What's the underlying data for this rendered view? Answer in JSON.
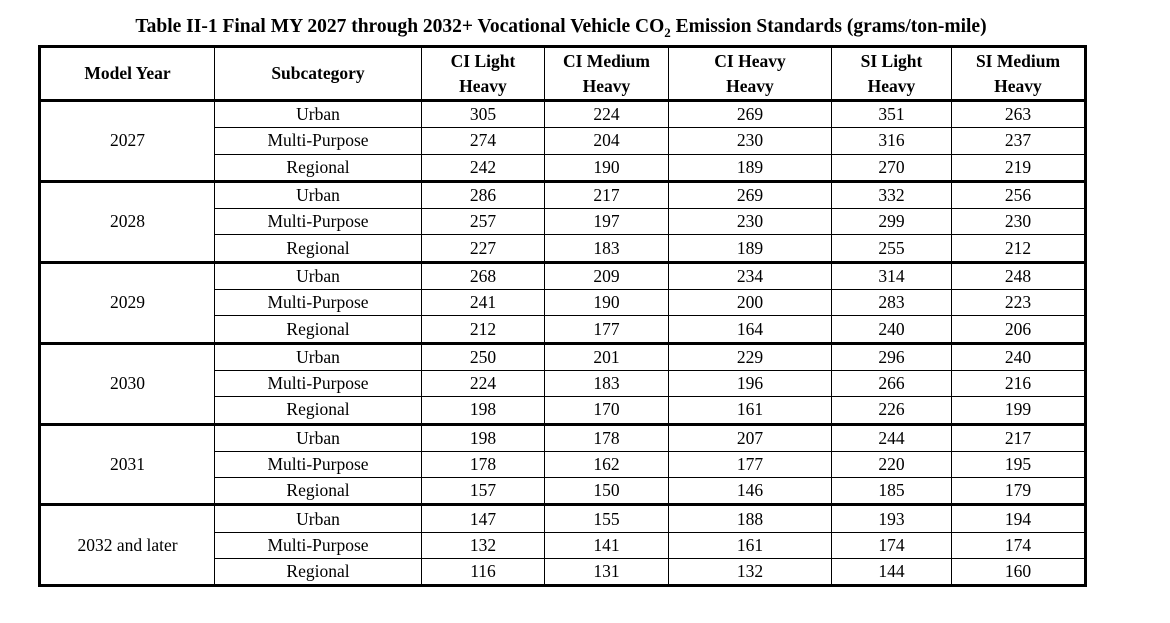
{
  "title": {
    "prefix": "Table II-1 Final MY 2027 through 2032+ Vocational Vehicle CO",
    "subscript": "2",
    "suffix": " Emission Standards (grams/ton-mile)"
  },
  "table": {
    "headers": [
      {
        "id": "model-year",
        "lines": [
          "Model Year"
        ]
      },
      {
        "id": "subcategory",
        "lines": [
          "Subcategory"
        ]
      },
      {
        "id": "ci-light-heavy",
        "lines": [
          "CI Light",
          "Heavy"
        ]
      },
      {
        "id": "ci-medium-heavy",
        "lines": [
          "CI Medium",
          "Heavy"
        ]
      },
      {
        "id": "ci-heavy-heavy",
        "lines": [
          "CI Heavy",
          "Heavy"
        ]
      },
      {
        "id": "si-light-heavy",
        "lines": [
          "SI Light",
          "Heavy"
        ]
      },
      {
        "id": "si-medium-heavy",
        "lines": [
          "SI Medium",
          "Heavy"
        ]
      }
    ],
    "groups": [
      {
        "model_year": "2027",
        "rows": [
          {
            "subcategory": "Urban",
            "values": [
              "305",
              "224",
              "269",
              "351",
              "263"
            ]
          },
          {
            "subcategory": "Multi-Purpose",
            "values": [
              "274",
              "204",
              "230",
              "316",
              "237"
            ]
          },
          {
            "subcategory": "Regional",
            "values": [
              "242",
              "190",
              "189",
              "270",
              "219"
            ]
          }
        ]
      },
      {
        "model_year": "2028",
        "rows": [
          {
            "subcategory": "Urban",
            "values": [
              "286",
              "217",
              "269",
              "332",
              "256"
            ]
          },
          {
            "subcategory": "Multi-Purpose",
            "values": [
              "257",
              "197",
              "230",
              "299",
              "230"
            ]
          },
          {
            "subcategory": "Regional",
            "values": [
              "227",
              "183",
              "189",
              "255",
              "212"
            ]
          }
        ]
      },
      {
        "model_year": "2029",
        "rows": [
          {
            "subcategory": "Urban",
            "values": [
              "268",
              "209",
              "234",
              "314",
              "248"
            ]
          },
          {
            "subcategory": "Multi-Purpose",
            "values": [
              "241",
              "190",
              "200",
              "283",
              "223"
            ]
          },
          {
            "subcategory": "Regional",
            "values": [
              "212",
              "177",
              "164",
              "240",
              "206"
            ]
          }
        ]
      },
      {
        "model_year": "2030",
        "rows": [
          {
            "subcategory": "Urban",
            "values": [
              "250",
              "201",
              "229",
              "296",
              "240"
            ]
          },
          {
            "subcategory": "Multi-Purpose",
            "values": [
              "224",
              "183",
              "196",
              "266",
              "216"
            ]
          },
          {
            "subcategory": "Regional",
            "values": [
              "198",
              "170",
              "161",
              "226",
              "199"
            ]
          }
        ]
      },
      {
        "model_year": "2031",
        "rows": [
          {
            "subcategory": "Urban",
            "values": [
              "198",
              "178",
              "207",
              "244",
              "217"
            ]
          },
          {
            "subcategory": "Multi-Purpose",
            "values": [
              "178",
              "162",
              "177",
              "220",
              "195"
            ]
          },
          {
            "subcategory": "Regional",
            "values": [
              "157",
              "150",
              "146",
              "185",
              "179"
            ]
          }
        ]
      },
      {
        "model_year": "2032 and later",
        "rows": [
          {
            "subcategory": "Urban",
            "values": [
              "147",
              "155",
              "188",
              "193",
              "194"
            ]
          },
          {
            "subcategory": "Multi-Purpose",
            "values": [
              "132",
              "141",
              "161",
              "174",
              "174"
            ]
          },
          {
            "subcategory": "Regional",
            "values": [
              "116",
              "131",
              "132",
              "144",
              "160"
            ]
          }
        ]
      }
    ]
  }
}
